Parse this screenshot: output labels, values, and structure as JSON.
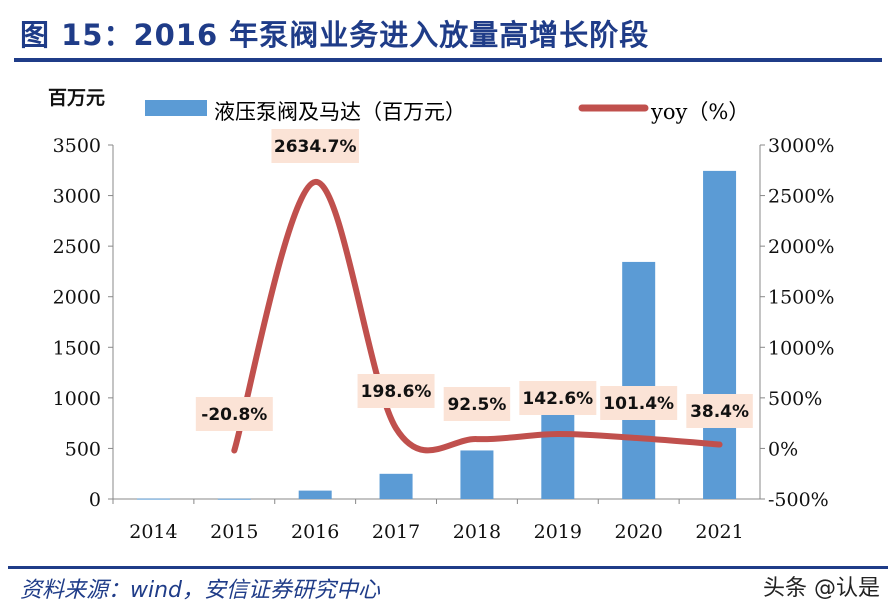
{
  "title": "图 15：2016 年泵阀业务进入放量高增长阶段",
  "source": "资料来源：wind，安信证券研究中心",
  "watermark": "头条 @认是",
  "colors": {
    "bar": "#5b9bd5",
    "line": "#c0504d",
    "label_bg": "#fbe3d6",
    "title": "#1f3c88"
  },
  "chart_data": {
    "type": "bar+line",
    "left_axis_unit": "百万元",
    "categories": [
      "2014",
      "2015",
      "2016",
      "2017",
      "2018",
      "2019",
      "2020",
      "2021"
    ],
    "series": [
      {
        "name": "液压泵阀及马达（百万元）",
        "type": "bar",
        "axis": "left",
        "values": [
          4,
          3,
          83,
          249,
          480,
          1164,
          2344,
          3244
        ]
      },
      {
        "name": "yoy（%）",
        "type": "line",
        "axis": "right",
        "values": [
          null,
          -20.8,
          2634.7,
          198.6,
          92.5,
          142.6,
          101.4,
          38.4
        ],
        "labels": [
          "",
          "-20.8%",
          "2634.7%",
          "198.6%",
          "92.5%",
          "142.6%",
          "101.4%",
          "38.4%"
        ]
      }
    ],
    "ylim_left": [
      0,
      3500
    ],
    "yticks_left": [
      "0",
      "500",
      "1000",
      "1500",
      "2000",
      "2500",
      "3000",
      "3500"
    ],
    "ylim_right": [
      -500,
      3000
    ],
    "yticks_right": [
      "-500%",
      "0%",
      "500%",
      "1000%",
      "1500%",
      "2000%",
      "2500%",
      "3000%"
    ],
    "legend": "top",
    "grid": false
  }
}
